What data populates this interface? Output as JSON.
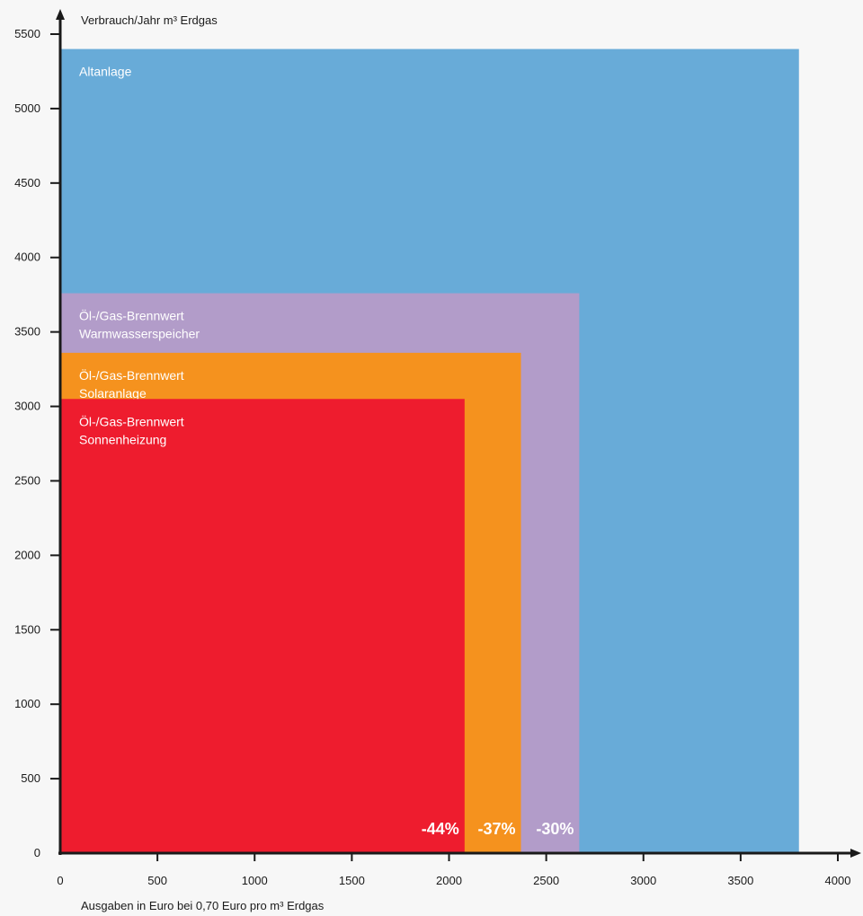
{
  "chart_data": {
    "type": "area",
    "ylabel": "Verbrauch/Jahr m³ Erdgas",
    "xlabel": "Ausgaben in Euro bei 0,70 Euro pro m³ Erdgas",
    "xlim": [
      0,
      4000
    ],
    "ylim": [
      0,
      5500
    ],
    "x_ticks": [
      "0",
      "500",
      "1000",
      "1500",
      "2000",
      "2500",
      "3000",
      "3500",
      "4000"
    ],
    "y_ticks": [
      "0",
      "500",
      "1000",
      "1500",
      "2000",
      "2500",
      "3000",
      "3500",
      "4000",
      "4500",
      "5000",
      "5500"
    ],
    "series": [
      {
        "name": "Altanlage",
        "label_lines": [
          "Altanlage"
        ],
        "x": 3800,
        "y": 5400,
        "color": "#68abd8",
        "reduction": ""
      },
      {
        "name": "Öl-/Gas-Brennwert Warmwasserspeicher",
        "label_lines": [
          "Öl-/Gas-Brennwert",
          "Warmwasserspeicher"
        ],
        "x": 2670,
        "y": 3760,
        "color": "#b29cc9",
        "reduction": "-30%"
      },
      {
        "name": "Öl-/Gas-Brennwert Solaranlage",
        "label_lines": [
          "Öl-/Gas-Brennwert",
          "Solaranlage"
        ],
        "x": 2370,
        "y": 3360,
        "color": "#f5921e",
        "reduction": "-37%"
      },
      {
        "name": "Öl-/Gas-Brennwert Sonnenheizung",
        "label_lines": [
          "Öl-/Gas-Brennwert",
          "Sonnenheizung"
        ],
        "x": 2080,
        "y": 3050,
        "color": "#ee1c2e",
        "reduction": "-44%"
      }
    ],
    "axis_color": "#1a1a1a",
    "grid": false,
    "legend": "none"
  }
}
